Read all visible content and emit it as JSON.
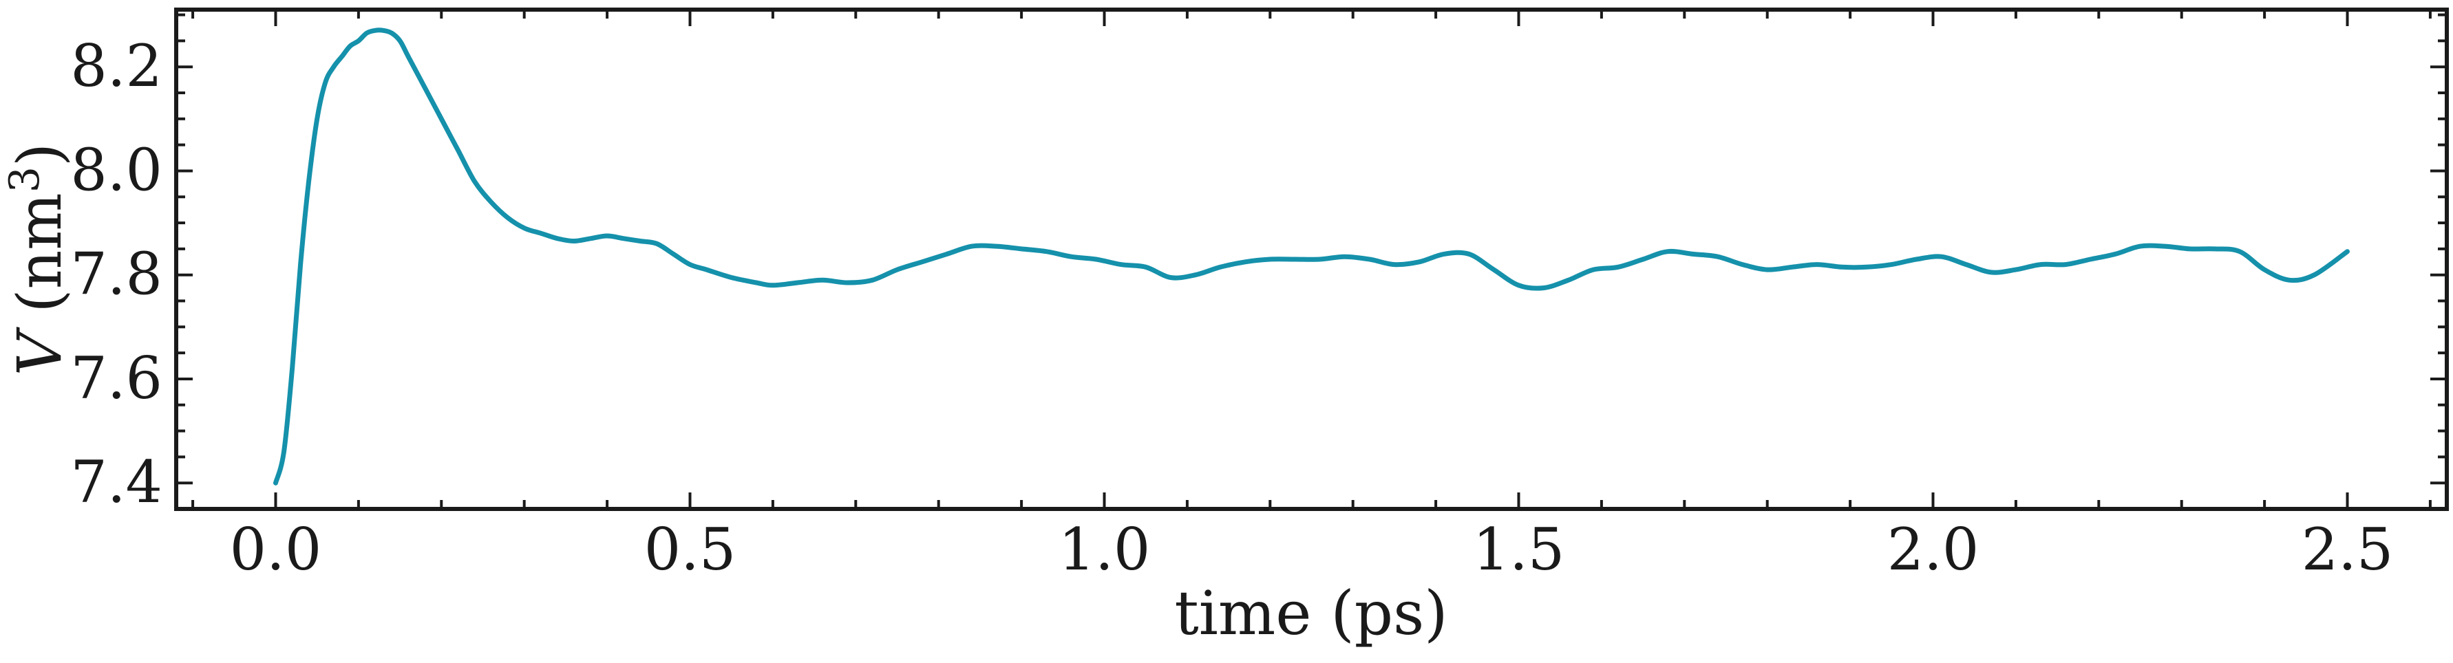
{
  "chart_data": {
    "type": "line",
    "title": "",
    "xlabel": "time (ps)",
    "ylabel_parts": {
      "var": "V",
      "open": " (nm",
      "sup": "3",
      "close": ")"
    },
    "xlim": [
      -0.12,
      2.62
    ],
    "ylim": [
      7.35,
      8.31
    ],
    "xticks": [
      0.0,
      0.5,
      1.0,
      1.5,
      2.0,
      2.5
    ],
    "xtick_labels": [
      "0.0",
      "0.5",
      "1.0",
      "1.5",
      "2.0",
      "2.5"
    ],
    "yticks": [
      7.4,
      7.6,
      7.8,
      8.0,
      8.2
    ],
    "ytick_labels": [
      "7.4",
      "7.6",
      "7.8",
      "8.0",
      "8.2"
    ],
    "grid": false,
    "legend": "none",
    "color": "#1591ab",
    "series": [
      {
        "x": [
          0.0,
          0.01,
          0.02,
          0.03,
          0.04,
          0.05,
          0.06,
          0.07,
          0.08,
          0.09,
          0.1,
          0.11,
          0.12,
          0.13,
          0.14,
          0.15,
          0.16,
          0.18,
          0.2,
          0.22,
          0.24,
          0.26,
          0.28,
          0.3,
          0.32,
          0.34,
          0.36,
          0.38,
          0.4,
          0.42,
          0.44,
          0.46,
          0.48,
          0.5,
          0.52,
          0.55,
          0.58,
          0.6,
          0.63,
          0.66,
          0.69,
          0.72,
          0.75,
          0.78,
          0.81,
          0.84,
          0.87,
          0.9,
          0.93,
          0.96,
          0.99,
          1.02,
          1.05,
          1.08,
          1.11,
          1.14,
          1.17,
          1.2,
          1.23,
          1.26,
          1.29,
          1.32,
          1.35,
          1.38,
          1.41,
          1.44,
          1.47,
          1.5,
          1.53,
          1.56,
          1.59,
          1.62,
          1.65,
          1.68,
          1.71,
          1.74,
          1.77,
          1.8,
          1.83,
          1.86,
          1.89,
          1.92,
          1.95,
          1.98,
          2.01,
          2.04,
          2.07,
          2.1,
          2.13,
          2.16,
          2.19,
          2.22,
          2.25,
          2.28,
          2.31,
          2.34,
          2.37,
          2.4,
          2.43,
          2.46,
          2.5
        ],
        "y": [
          7.4,
          7.46,
          7.62,
          7.82,
          7.98,
          8.1,
          8.17,
          8.2,
          8.22,
          8.24,
          8.25,
          8.265,
          8.27,
          8.27,
          8.265,
          8.25,
          8.22,
          8.16,
          8.1,
          8.04,
          7.98,
          7.94,
          7.91,
          7.89,
          7.88,
          7.87,
          7.865,
          7.87,
          7.875,
          7.87,
          7.865,
          7.86,
          7.84,
          7.82,
          7.81,
          7.795,
          7.785,
          7.78,
          7.785,
          7.79,
          7.785,
          7.79,
          7.81,
          7.825,
          7.84,
          7.855,
          7.855,
          7.85,
          7.845,
          7.835,
          7.83,
          7.82,
          7.815,
          7.795,
          7.8,
          7.815,
          7.825,
          7.83,
          7.83,
          7.83,
          7.835,
          7.83,
          7.82,
          7.825,
          7.84,
          7.84,
          7.81,
          7.78,
          7.775,
          7.79,
          7.81,
          7.815,
          7.83,
          7.845,
          7.84,
          7.835,
          7.82,
          7.81,
          7.815,
          7.82,
          7.815,
          7.815,
          7.82,
          7.83,
          7.835,
          7.82,
          7.805,
          7.81,
          7.82,
          7.82,
          7.83,
          7.84,
          7.855,
          7.855,
          7.85,
          7.85,
          7.845,
          7.81,
          7.79,
          7.8,
          7.845
        ]
      }
    ]
  }
}
